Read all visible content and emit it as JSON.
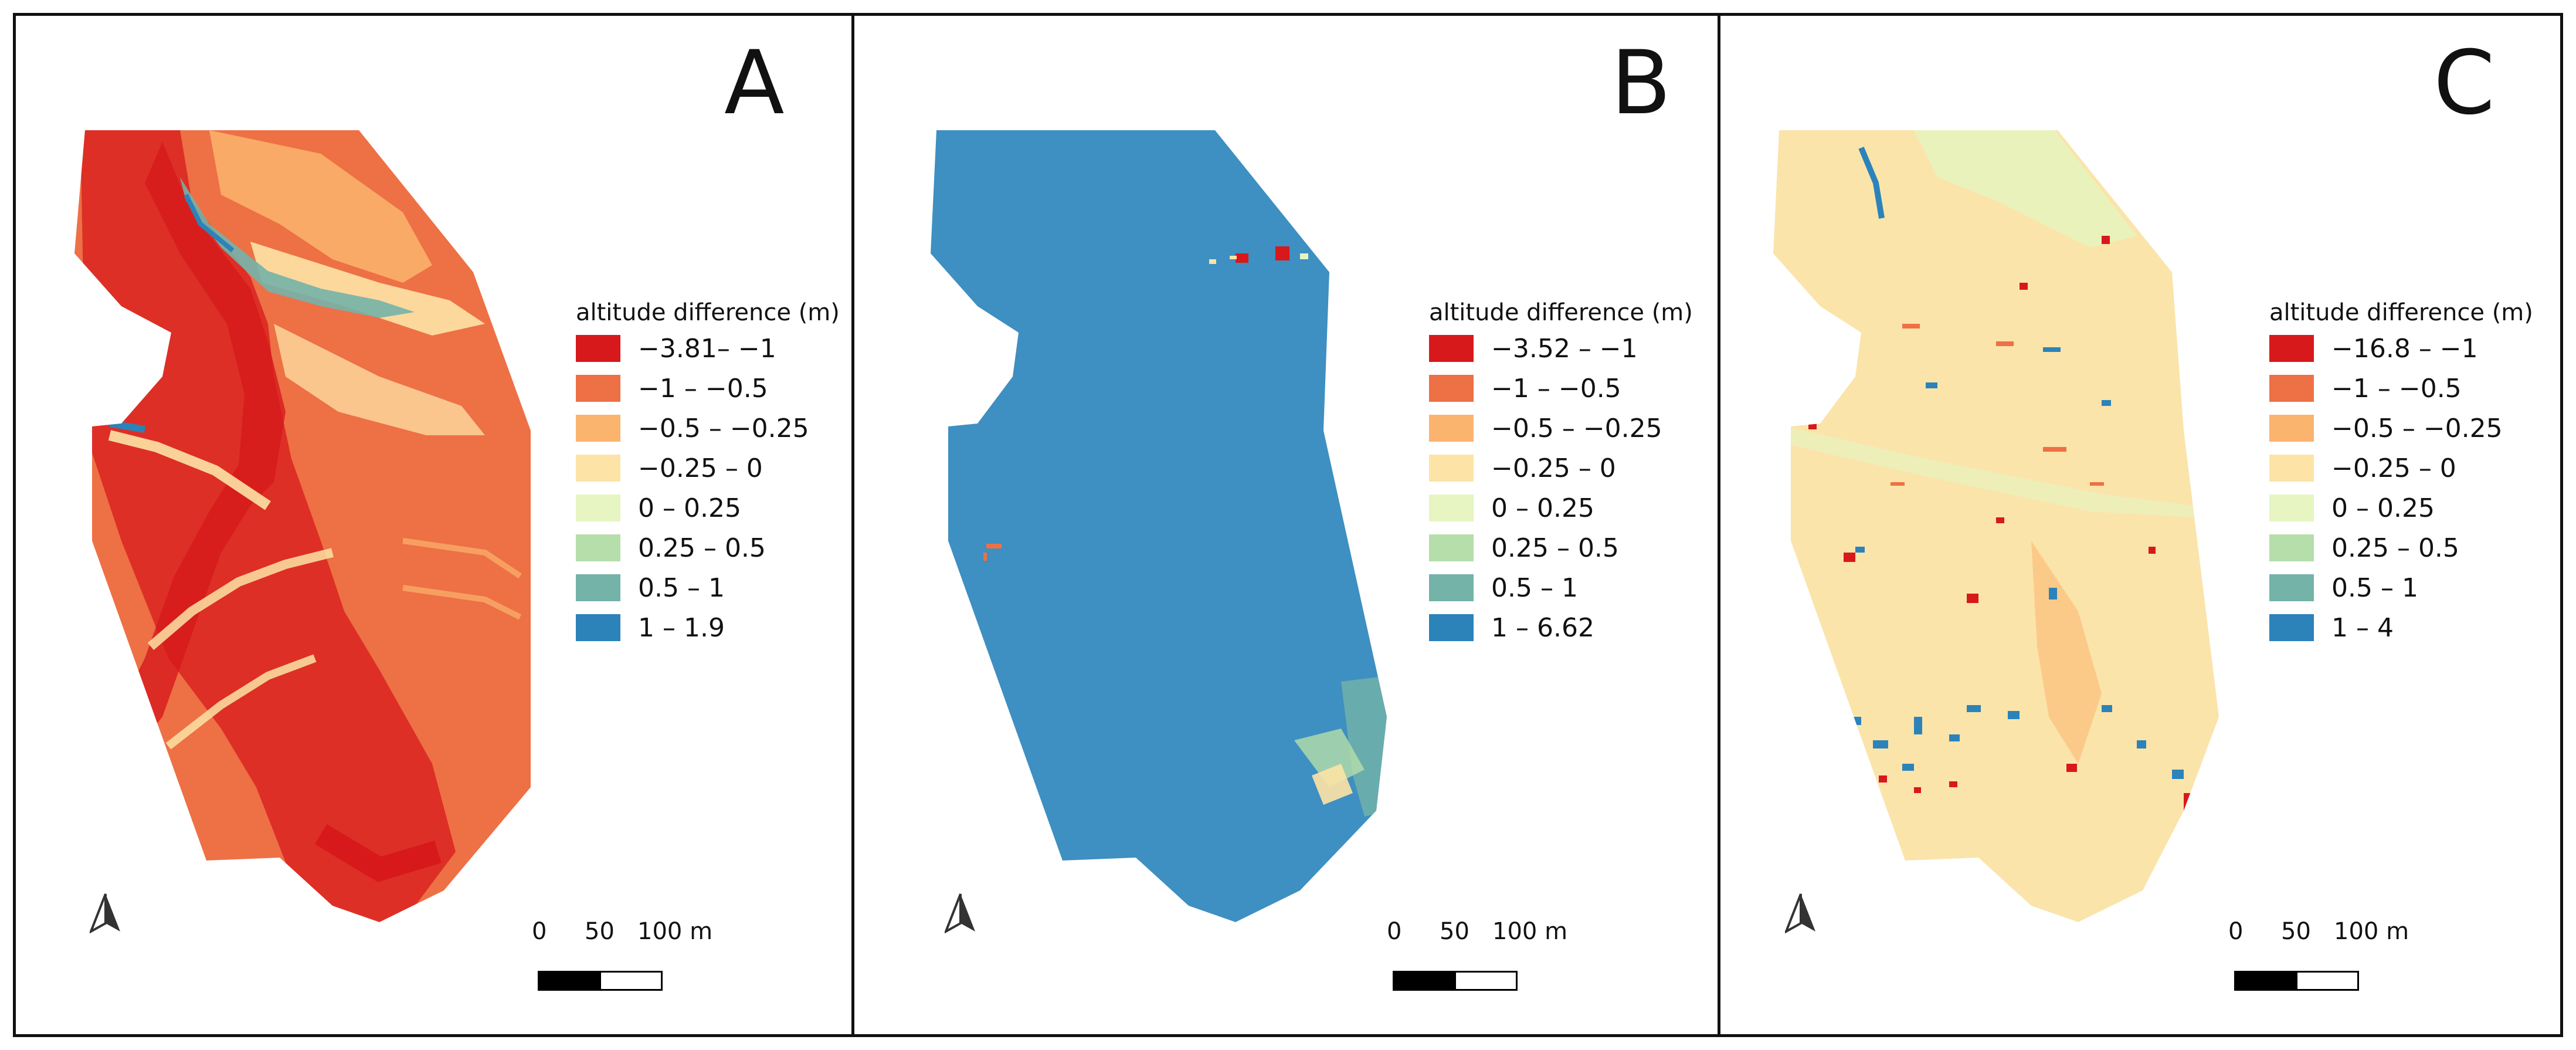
{
  "colors": {
    "c1": "#d7191c",
    "c2": "#ee7045",
    "c3": "#fbb46d",
    "c4": "#fde3a5",
    "c5": "#e6f5c1",
    "c6": "#b5deaa",
    "c7": "#74b3a8",
    "c8": "#2b83ba"
  },
  "panels": [
    {
      "letter": "A",
      "legend_title": "altitude difference (m)",
      "legend_items": [
        "−3.81– −1",
        "−1 – −0.5",
        "−0.5 – −0.25",
        "−0.25 – 0",
        "0 – 0.25",
        "0.25 – 0.5",
        "0.5 – 1",
        "1 – 1.9"
      ],
      "scale": {
        "zero": "0",
        "mid": "50",
        "end": "100 m"
      }
    },
    {
      "letter": "B",
      "legend_title": "altitude difference (m)",
      "legend_items": [
        "−3.52 – −1",
        "−1 – −0.5",
        "−0.5 – −0.25",
        "−0.25 – 0",
        "0 – 0.25",
        "0.25 – 0.5",
        "0.5 – 1",
        "1 – 6.62"
      ],
      "scale": {
        "zero": "0",
        "mid": "50",
        "end": "100 m"
      }
    },
    {
      "letter": "C",
      "legend_title": "altitude difference (m)",
      "legend_items": [
        "−16.8 – −1",
        "−1 – −0.5",
        "−0.5 – −0.25",
        "−0.25 – 0",
        "0 – 0.25",
        "0.25 – 0.5",
        "0.5 – 1",
        "1 –  4"
      ],
      "scale": {
        "zero": "0",
        "mid": "50",
        "end": "100 m"
      }
    }
  ],
  "icons": {
    "north": "north-arrow-icon"
  }
}
